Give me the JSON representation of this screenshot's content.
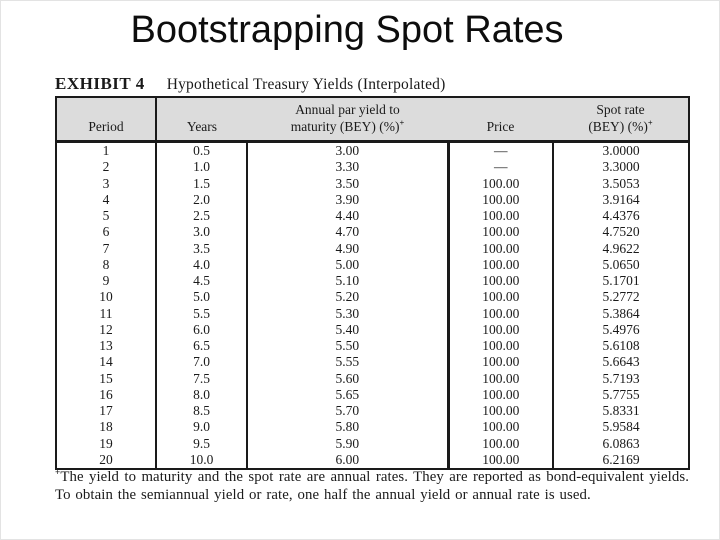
{
  "slide": {
    "title": "Bootstrapping Spot Rates"
  },
  "exhibit": {
    "label": "EXHIBIT 4",
    "caption": "Hypothetical Treasury Yields (Interpolated)"
  },
  "colors": {
    "header_bg": "#dcdcdc",
    "border": "#1a1a1a",
    "text": "#1a1a1a"
  },
  "table": {
    "columns": [
      {
        "label": "Period"
      },
      {
        "label": "Years"
      },
      {
        "line1": "Annual par yield to",
        "line2": "maturity (BEY) (%)",
        "marker": "+"
      },
      {
        "label": "Price"
      },
      {
        "line1": "Spot rate",
        "line2": "(BEY) (%)",
        "marker": "+"
      }
    ],
    "rows": [
      [
        "1",
        "0.5",
        "3.00",
        "—",
        "3.0000"
      ],
      [
        "2",
        "1.0",
        "3.30",
        "—",
        "3.3000"
      ],
      [
        "3",
        "1.5",
        "3.50",
        "100.00",
        "3.5053"
      ],
      [
        "4",
        "2.0",
        "3.90",
        "100.00",
        "3.9164"
      ],
      [
        "5",
        "2.5",
        "4.40",
        "100.00",
        "4.4376"
      ],
      [
        "6",
        "3.0",
        "4.70",
        "100.00",
        "4.7520"
      ],
      [
        "7",
        "3.5",
        "4.90",
        "100.00",
        "4.9622"
      ],
      [
        "8",
        "4.0",
        "5.00",
        "100.00",
        "5.0650"
      ],
      [
        "9",
        "4.5",
        "5.10",
        "100.00",
        "5.1701"
      ],
      [
        "10",
        "5.0",
        "5.20",
        "100.00",
        "5.2772"
      ],
      [
        "11",
        "5.5",
        "5.30",
        "100.00",
        "5.3864"
      ],
      [
        "12",
        "6.0",
        "5.40",
        "100.00",
        "5.4976"
      ],
      [
        "13",
        "6.5",
        "5.50",
        "100.00",
        "5.6108"
      ],
      [
        "14",
        "7.0",
        "5.55",
        "100.00",
        "5.6643"
      ],
      [
        "15",
        "7.5",
        "5.60",
        "100.00",
        "5.7193"
      ],
      [
        "16",
        "8.0",
        "5.65",
        "100.00",
        "5.7755"
      ],
      [
        "17",
        "8.5",
        "5.70",
        "100.00",
        "5.8331"
      ],
      [
        "18",
        "9.0",
        "5.80",
        "100.00",
        "5.9584"
      ],
      [
        "19",
        "9.5",
        "5.90",
        "100.00",
        "6.0863"
      ],
      [
        "20",
        "10.0",
        "6.00",
        "100.00",
        "6.2169"
      ]
    ]
  },
  "footnote": {
    "marker": "+",
    "text": "The yield to maturity and the spot rate are annual rates. They are reported as bond-equivalent yields. To obtain the semiannual yield or rate, one half the annual yield or annual rate is used."
  }
}
